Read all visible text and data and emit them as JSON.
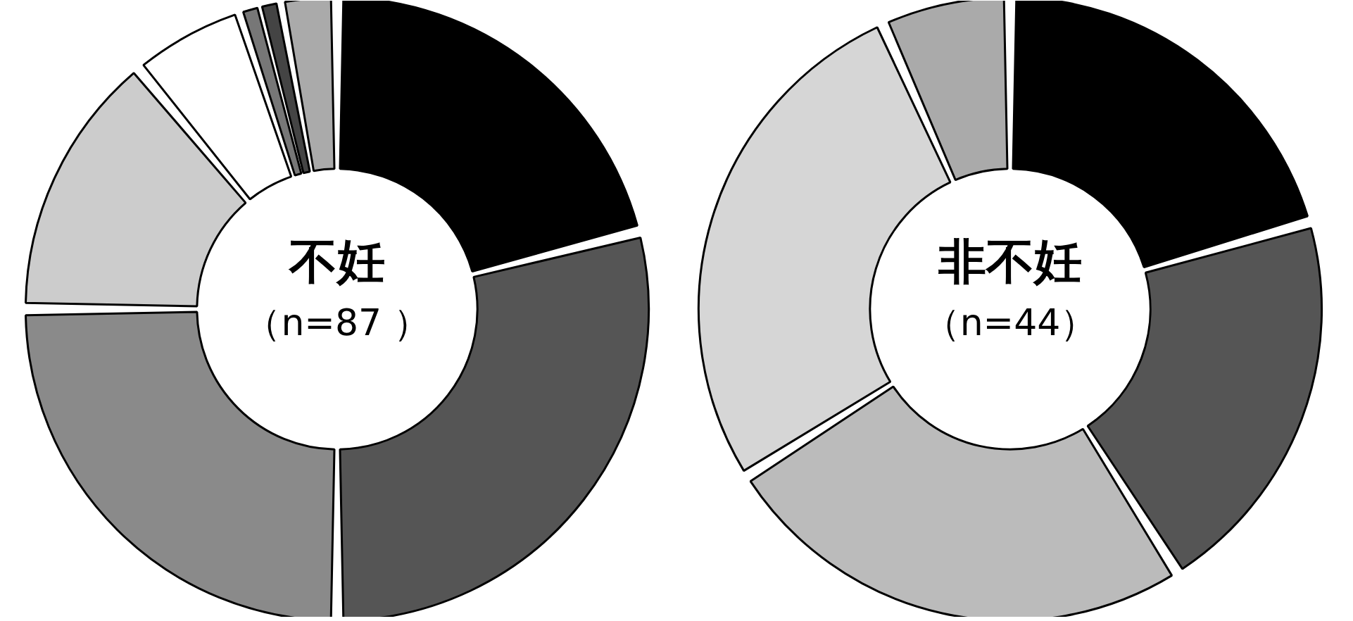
{
  "chart_data": [
    {
      "type": "donut",
      "title": "不妊",
      "subtitle": "（n=87 ）",
      "categories": [
        null,
        null,
        null,
        null,
        null,
        null,
        null,
        null
      ],
      "values": [
        21,
        29,
        25,
        14,
        6,
        1,
        1,
        3
      ],
      "colors": [
        "#000000",
        "#555555",
        "#8a8a8a",
        "#cccccc",
        "#ffffff",
        "#777777",
        "#444444",
        "#aaaaaa"
      ]
    },
    {
      "type": "donut",
      "title": "非不妊",
      "subtitle": "（n=44）",
      "categories": [
        null,
        null,
        null,
        null,
        null
      ],
      "values": [
        20.5,
        20.5,
        25,
        27.3,
        6.7
      ],
      "colors": [
        "#000000",
        "#555555",
        "#bbbbbb",
        "#d6d6d6",
        "#aaaaaa"
      ]
    }
  ]
}
